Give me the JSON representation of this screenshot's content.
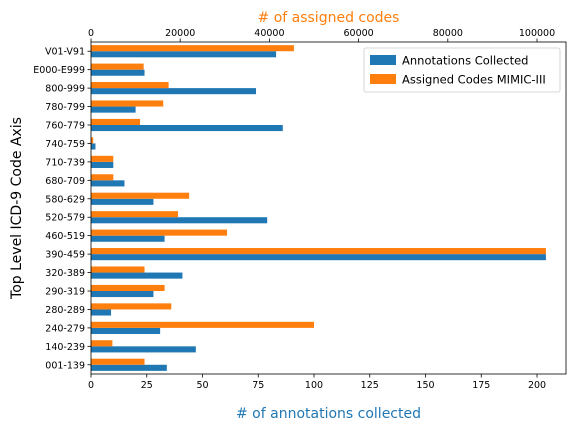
{
  "chart_data": {
    "type": "bar",
    "orientation": "horizontal",
    "categories": [
      "001-139",
      "140-239",
      "240-279",
      "280-289",
      "290-319",
      "320-389",
      "390-459",
      "460-519",
      "520-579",
      "580-629",
      "680-709",
      "710-739",
      "740-759",
      "760-779",
      "780-799",
      "800-999",
      "E000-E999",
      "V01-V91"
    ],
    "series": [
      {
        "name": "Annotations Collected",
        "axis": "bottom",
        "color": "#1f77b4",
        "values": [
          34,
          47,
          31,
          9,
          28,
          41,
          204,
          33,
          79,
          28,
          15,
          10,
          2,
          86,
          20,
          74,
          24,
          83
        ]
      },
      {
        "name": "Assigned Codes MIMIC-III",
        "axis": "top",
        "color": "#ff7f0e",
        "values": [
          12000,
          4800,
          50000,
          18000,
          16500,
          12000,
          102000,
          30500,
          19500,
          22000,
          5000,
          5000,
          500,
          11000,
          16200,
          17400,
          11800,
          45500
        ]
      }
    ],
    "x_bottom": {
      "label": "# of annotations collected",
      "range": [
        0,
        213
      ],
      "ticks": [
        0,
        25,
        50,
        75,
        100,
        125,
        150,
        175,
        200
      ],
      "color": "#1f77b4"
    },
    "x_top": {
      "label": "# of assigned codes",
      "range": [
        0,
        106500
      ],
      "ticks": [
        0,
        20000,
        40000,
        60000,
        80000,
        100000
      ],
      "color": "#ff7f0e"
    },
    "ylabel": "Top Level ICD-9 Code Axis",
    "grid": false,
    "legend": "top-right"
  }
}
